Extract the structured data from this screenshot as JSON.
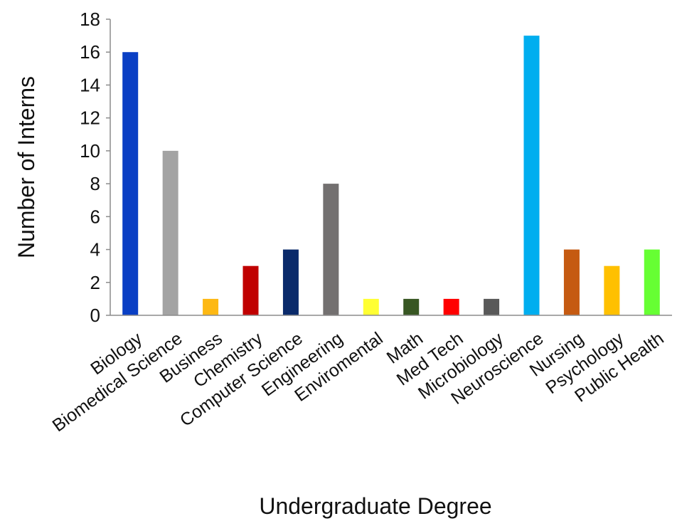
{
  "chart_data": {
    "type": "bar",
    "title": "",
    "xlabel": "Undergraduate Degree",
    "ylabel": "Number of Interns",
    "ylim": [
      0,
      18
    ],
    "yticks": [
      0,
      2,
      4,
      6,
      8,
      10,
      12,
      14,
      16,
      18
    ],
    "grid": false,
    "categories": [
      "Biology",
      "Biomedical Science",
      "Business",
      "Chemistry",
      "Computer Science",
      "Engineering",
      "Enviromental",
      "Math",
      "Med Tech",
      "Microbiology",
      "Neuroscience",
      "Nursing",
      "Psychology",
      "Public Health"
    ],
    "values": [
      16,
      10,
      1,
      3,
      4,
      8,
      1,
      1,
      1,
      1,
      17,
      4,
      3,
      4
    ],
    "colors": [
      "#0a3fc4",
      "#a3a3a3",
      "#fdb813",
      "#c00000",
      "#0a2a6a",
      "#737070",
      "#ffff33",
      "#385723",
      "#ff0000",
      "#595959",
      "#00aeef",
      "#c55a11",
      "#ffc000",
      "#66ff33"
    ]
  }
}
